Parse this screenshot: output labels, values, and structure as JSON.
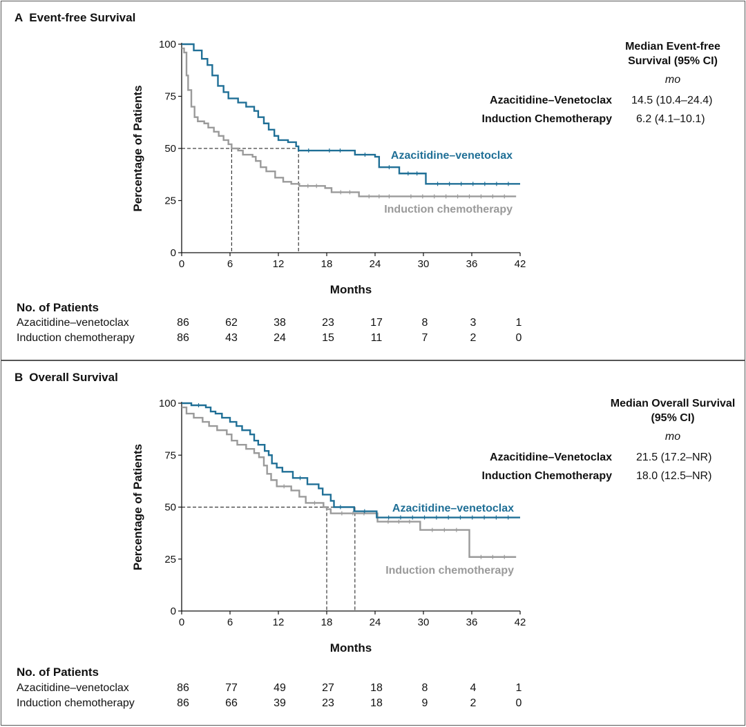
{
  "colors": {
    "azacitidine_venetoclax": "#1f6f96",
    "induction_chemotherapy": "#9a9a9a",
    "axis": "#111111",
    "dashed": "#111111"
  },
  "panels": [
    {
      "letter": "A",
      "title": "Event-free Survival",
      "median_header": "Median Event-free Survival (95% CI)",
      "median_unit": "mo",
      "medians": [
        {
          "arm": "Azacitidine–Venetoclax",
          "value": "14.5 (10.4–24.4)"
        },
        {
          "arm": "Induction Chemotherapy",
          "value": "6.2 (4.1–10.1)"
        }
      ],
      "risk_header": "No. of Patients",
      "risk_rows": [
        {
          "label": "Azacitidine–venetoclax",
          "values": [
            "86",
            "62",
            "38",
            "23",
            "17",
            "8",
            "3",
            "1"
          ]
        },
        {
          "label": "Induction chemotherapy",
          "values": [
            "86",
            "43",
            "24",
            "15",
            "11",
            "7",
            "2",
            "0"
          ]
        }
      ]
    },
    {
      "letter": "B",
      "title": "Overall Survival",
      "median_header": "Median Overall Survival (95% CI)",
      "median_unit": "mo",
      "medians": [
        {
          "arm": "Azacitidine–Venetoclax",
          "value": "21.5 (17.2–NR)"
        },
        {
          "arm": "Induction Chemotherapy",
          "value": "18.0 (12.5–NR)"
        }
      ],
      "risk_header": "No. of Patients",
      "risk_rows": [
        {
          "label": "Azacitidine–venetoclax",
          "values": [
            "86",
            "77",
            "49",
            "27",
            "18",
            "8",
            "4",
            "1"
          ]
        },
        {
          "label": "Induction chemotherapy",
          "values": [
            "86",
            "66",
            "39",
            "23",
            "18",
            "9",
            "2",
            "0"
          ]
        }
      ]
    }
  ],
  "chart_data": [
    {
      "type": "line",
      "step": true,
      "title": "Event-free Survival",
      "xlabel": "Months",
      "ylabel": "Percentage of Patients",
      "xlim": [
        0,
        42
      ],
      "ylim": [
        0,
        100
      ],
      "xticks": [
        "0",
        "6",
        "12",
        "18",
        "24",
        "30",
        "36",
        "42"
      ],
      "yticks": [
        "0",
        "25",
        "50",
        "75",
        "100"
      ],
      "median_line_y": 50,
      "medians_x": [
        14.5,
        6.2
      ],
      "series": [
        {
          "name": "Azacitidine–venetoclax",
          "color": "#1f6f96",
          "end_x": 42,
          "points": [
            [
              0,
              100
            ],
            [
              1.5,
              97
            ],
            [
              2.5,
              93
            ],
            [
              3.2,
              90
            ],
            [
              3.8,
              85
            ],
            [
              4.5,
              80
            ],
            [
              5.2,
              77
            ],
            [
              5.8,
              74
            ],
            [
              7,
              72
            ],
            [
              8,
              70
            ],
            [
              9,
              68
            ],
            [
              9.5,
              65
            ],
            [
              10.2,
              62
            ],
            [
              10.8,
              59
            ],
            [
              11.5,
              56
            ],
            [
              12,
              54
            ],
            [
              13.2,
              53
            ],
            [
              14.2,
              51
            ],
            [
              14.5,
              49
            ],
            [
              17,
              49
            ],
            [
              21,
              49
            ],
            [
              21.5,
              47
            ],
            [
              24,
              46
            ],
            [
              24.5,
              41
            ],
            [
              27,
              38
            ],
            [
              30.3,
              33
            ],
            [
              42,
              33
            ]
          ]
        },
        {
          "name": "Induction chemotherapy",
          "color": "#9a9a9a",
          "end_x": 41.5,
          "points": [
            [
              0,
              98
            ],
            [
              0.3,
              96
            ],
            [
              0.6,
              85
            ],
            [
              0.8,
              78
            ],
            [
              1.2,
              70
            ],
            [
              1.6,
              65
            ],
            [
              2,
              63
            ],
            [
              2.8,
              62
            ],
            [
              3.3,
              60
            ],
            [
              4,
              58
            ],
            [
              4.6,
              56
            ],
            [
              5.2,
              54
            ],
            [
              5.8,
              52
            ],
            [
              6.2,
              50
            ],
            [
              7,
              49
            ],
            [
              7.6,
              47
            ],
            [
              8.8,
              46
            ],
            [
              9.2,
              44
            ],
            [
              9.8,
              41
            ],
            [
              10.5,
              39
            ],
            [
              11.6,
              36
            ],
            [
              12.6,
              34
            ],
            [
              13.6,
              33
            ],
            [
              14.6,
              32
            ],
            [
              17.8,
              31
            ],
            [
              18.6,
              29
            ],
            [
              22,
              27
            ],
            [
              27,
              27
            ],
            [
              41.5,
              27
            ]
          ]
        }
      ]
    },
    {
      "type": "line",
      "step": true,
      "title": "Overall Survival",
      "xlabel": "Months",
      "ylabel": "Percentage of Patients",
      "xlim": [
        0,
        42
      ],
      "ylim": [
        0,
        100
      ],
      "xticks": [
        "0",
        "6",
        "12",
        "18",
        "24",
        "30",
        "36",
        "42"
      ],
      "yticks": [
        "0",
        "25",
        "50",
        "75",
        "100"
      ],
      "median_line_y": 50,
      "medians_x": [
        21.5,
        18.0
      ],
      "series": [
        {
          "name": "Azacitidine–venetoclax",
          "color": "#1f6f96",
          "end_x": 42,
          "points": [
            [
              0,
              100
            ],
            [
              1.2,
              99
            ],
            [
              3,
              98
            ],
            [
              3.6,
              96
            ],
            [
              4.2,
              95
            ],
            [
              5,
              93
            ],
            [
              6,
              91
            ],
            [
              6.8,
              89
            ],
            [
              7.5,
              87
            ],
            [
              8.5,
              85
            ],
            [
              9,
              82
            ],
            [
              9.5,
              80
            ],
            [
              10.3,
              77
            ],
            [
              10.8,
              75
            ],
            [
              11.2,
              71
            ],
            [
              11.8,
              69
            ],
            [
              12.5,
              67
            ],
            [
              13.8,
              64
            ],
            [
              15.6,
              61
            ],
            [
              17,
              59
            ],
            [
              17.5,
              56
            ],
            [
              18.5,
              53
            ],
            [
              18.9,
              50
            ],
            [
              20.5,
              50
            ],
            [
              21.4,
              48
            ],
            [
              24,
              48
            ],
            [
              24.2,
              45
            ],
            [
              42,
              45
            ]
          ]
        },
        {
          "name": "Induction chemotherapy",
          "color": "#9a9a9a",
          "end_x": 41.5,
          "points": [
            [
              0,
              98
            ],
            [
              0.6,
              95
            ],
            [
              1.5,
              93
            ],
            [
              2.6,
              91
            ],
            [
              3.4,
              89
            ],
            [
              4.4,
              87
            ],
            [
              5.6,
              85
            ],
            [
              6.2,
              82
            ],
            [
              6.9,
              80
            ],
            [
              8,
              78
            ],
            [
              9,
              76
            ],
            [
              9.6,
              74
            ],
            [
              10.2,
              70
            ],
            [
              10.6,
              66
            ],
            [
              11.1,
              63
            ],
            [
              11.8,
              60
            ],
            [
              13.6,
              58
            ],
            [
              14.6,
              55
            ],
            [
              15.4,
              52
            ],
            [
              17.6,
              50
            ],
            [
              18,
              49
            ],
            [
              18.5,
              47
            ],
            [
              24,
              47
            ],
            [
              24.3,
              43
            ],
            [
              29.6,
              39
            ],
            [
              35.6,
              39
            ],
            [
              35.7,
              26
            ],
            [
              41.5,
              26
            ]
          ]
        }
      ]
    }
  ]
}
